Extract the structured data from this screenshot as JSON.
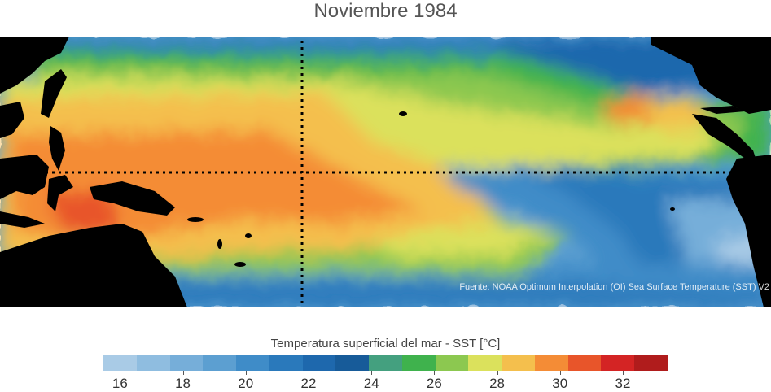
{
  "title": "Noviembre 1984",
  "source_note": "Fuente: NOAA Optimum Interpolation (OI) Sea Surface Temperature (SST) V2",
  "colorbar": {
    "label": "Temperatura superficial del mar - SST  [°C]",
    "colors": [
      "#a9cbe6",
      "#8fbde0",
      "#76aed9",
      "#5c9fd1",
      "#3f8cc8",
      "#2a79bb",
      "#1e68ad",
      "#175b99",
      "#44a07f",
      "#3fb24d",
      "#8cc850",
      "#dbe15c",
      "#f4bf4d",
      "#f48c36",
      "#e8552a",
      "#d42424",
      "#b01c1c"
    ],
    "tick_labels": [
      "16",
      "18",
      "20",
      "22",
      "24",
      "26",
      "28",
      "30",
      "32"
    ],
    "tick_positions": [
      0.0294,
      0.1408,
      0.2522,
      0.3636,
      0.475,
      0.5864,
      0.6978,
      0.8092,
      0.9206
    ]
  }
}
